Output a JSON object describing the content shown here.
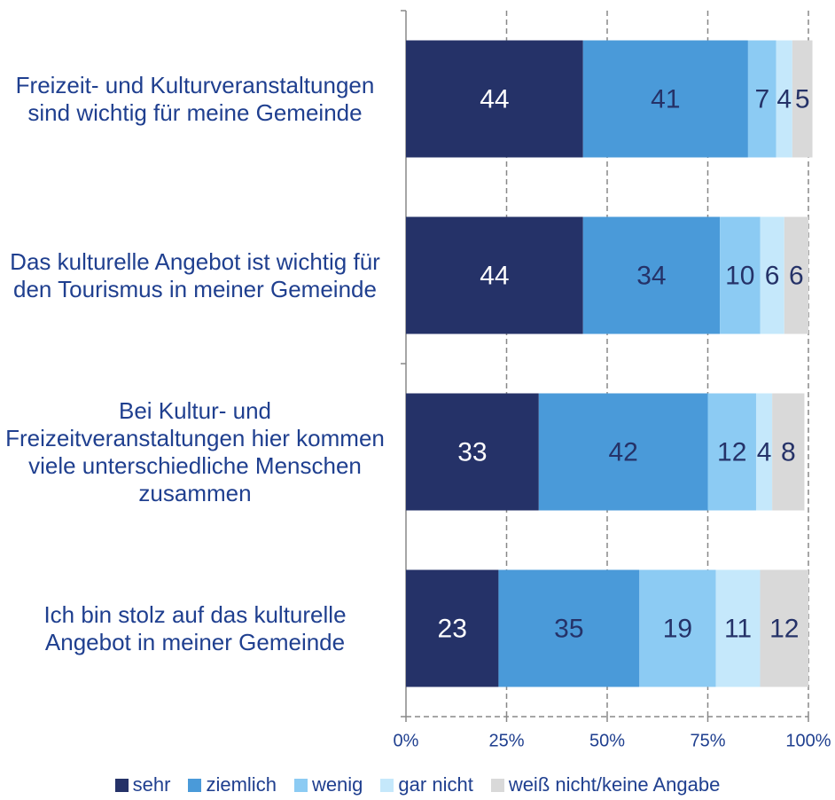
{
  "chart_data": {
    "type": "stacked_bar_horizontal",
    "categories": [
      "Freizeit- und Kulturveranstaltungen sind wichtig für meine Gemeinde",
      "Das kulturelle Angebot ist wichtig für den Tourismus in meiner Gemeinde",
      "Bei Kultur- und Freizeitveranstaltungen hier kommen viele unterschiedliche Menschen zusammen",
      "Ich bin stolz auf das kulturelle Angebot in meiner Gemeinde"
    ],
    "series": [
      {
        "name": "sehr",
        "color": "#253268",
        "values": [
          44,
          44,
          33,
          23
        ]
      },
      {
        "name": "ziemlich",
        "color": "#4a9ad9",
        "values": [
          41,
          34,
          42,
          35
        ]
      },
      {
        "name": "wenig",
        "color": "#8ccbf3",
        "values": [
          7,
          10,
          12,
          19
        ]
      },
      {
        "name": "gar nicht",
        "color": "#c5e8fb",
        "values": [
          4,
          6,
          4,
          11
        ]
      },
      {
        "name": "weiß nicht/keine Angabe",
        "color": "#d9d9d9",
        "values": [
          5,
          6,
          8,
          12
        ]
      }
    ],
    "xlim": [
      0,
      100
    ],
    "xticks": [
      {
        "value": 0,
        "label": "0%"
      },
      {
        "value": 25,
        "label": "25%"
      },
      {
        "value": 50,
        "label": "50%"
      },
      {
        "value": 75,
        "label": "75%"
      },
      {
        "value": 100,
        "label": "100%"
      }
    ],
    "grid": true,
    "legend": "bottom"
  }
}
